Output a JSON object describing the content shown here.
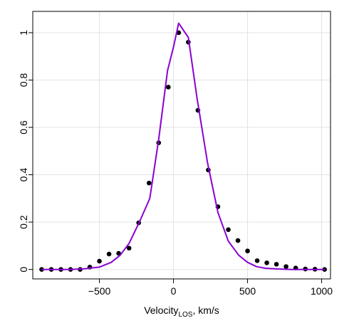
{
  "chart_data": {
    "type": "scatter",
    "xlabel": "Velocity",
    "xlabel_subscript": "LOS",
    "xlabel_suffix": ", km/s",
    "ylabel": "",
    "xlim": [
      -950,
      1060
    ],
    "ylim": [
      -0.04,
      1.09
    ],
    "x_ticks": [
      -500,
      0,
      500,
      1000
    ],
    "x_tick_labels": [
      "−500",
      "0",
      "500",
      "1000"
    ],
    "y_ticks": [
      0,
      0.2,
      0.4,
      0.6,
      0.8,
      1
    ],
    "y_tick_labels": [
      "0",
      "0.2",
      "0.4",
      "0.6",
      "0.8",
      "1"
    ],
    "grid": true,
    "series": [
      {
        "kind": "points",
        "color": "#000000",
        "points": [
          [
            -890,
            0.0
          ],
          [
            -825,
            0.0
          ],
          [
            -760,
            0.0
          ],
          [
            -695,
            0.0
          ],
          [
            -630,
            0.0
          ],
          [
            -565,
            0.01
          ],
          [
            -500,
            0.035
          ],
          [
            -435,
            0.065
          ],
          [
            -370,
            0.068
          ],
          [
            -300,
            0.09
          ],
          [
            -235,
            0.197
          ],
          [
            -165,
            0.365
          ],
          [
            -100,
            0.535
          ],
          [
            -35,
            0.77
          ],
          [
            35,
            1.0
          ],
          [
            100,
            0.96
          ],
          [
            165,
            0.672
          ],
          [
            235,
            0.42
          ],
          [
            300,
            0.265
          ],
          [
            370,
            0.168
          ],
          [
            435,
            0.122
          ],
          [
            500,
            0.078
          ],
          [
            565,
            0.037
          ],
          [
            630,
            0.028
          ],
          [
            695,
            0.022
          ],
          [
            760,
            0.012
          ],
          [
            825,
            0.006
          ],
          [
            890,
            0.002
          ],
          [
            955,
            0.001
          ],
          [
            1020,
            0.0
          ]
        ]
      },
      {
        "kind": "line",
        "color": "#8a00d4",
        "points": [
          [
            -890,
            0.0
          ],
          [
            -800,
            0.0
          ],
          [
            -700,
            0.0
          ],
          [
            -600,
            0.003
          ],
          [
            -500,
            0.01
          ],
          [
            -420,
            0.03
          ],
          [
            -360,
            0.06
          ],
          [
            -300,
            0.11
          ],
          [
            -230,
            0.2
          ],
          [
            -160,
            0.3
          ],
          [
            -100,
            0.55
          ],
          [
            -40,
            0.84
          ],
          [
            0,
            0.94
          ],
          [
            35,
            1.04
          ],
          [
            100,
            0.98
          ],
          [
            160,
            0.72
          ],
          [
            230,
            0.45
          ],
          [
            300,
            0.24
          ],
          [
            370,
            0.12
          ],
          [
            440,
            0.06
          ],
          [
            500,
            0.03
          ],
          [
            560,
            0.012
          ],
          [
            620,
            0.005
          ],
          [
            700,
            0.002
          ],
          [
            800,
            0.0
          ],
          [
            1020,
            0.0
          ]
        ]
      }
    ]
  }
}
